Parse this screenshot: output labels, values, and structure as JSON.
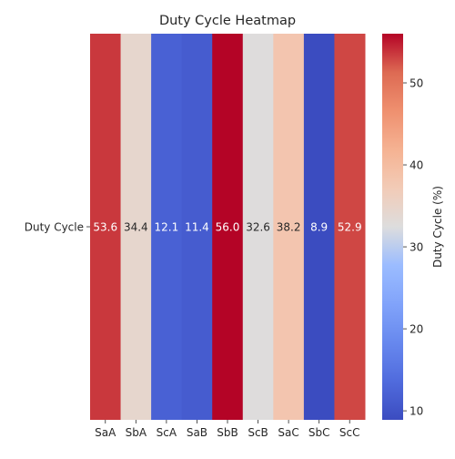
{
  "chart_data": {
    "type": "heatmap",
    "title": "Duty Cycle Heatmap",
    "row_labels": [
      "Duty Cycle"
    ],
    "categories": [
      "SaA",
      "SbA",
      "ScA",
      "SaB",
      "SbB",
      "ScB",
      "SaC",
      "SbC",
      "ScC"
    ],
    "values": [
      [
        53.6,
        34.4,
        12.1,
        11.4,
        56.0,
        32.6,
        38.2,
        8.9,
        52.9
      ]
    ],
    "value_labels": [
      "53.6",
      "34.4",
      "12.1",
      "11.4",
      "56.0",
      "32.6",
      "38.2",
      "8.9",
      "52.9"
    ],
    "colormap": "coolwarm",
    "vmin": 8.9,
    "vmax": 56.0,
    "colorbar": {
      "label": "Duty Cycle (%)",
      "ticks": [
        10,
        20,
        30,
        40,
        50
      ],
      "tick_labels": [
        "10",
        "20",
        "30",
        "40",
        "50"
      ],
      "placement": "right"
    },
    "annotation_colors": {
      "on_light": "#262626",
      "on_dark": "#ffffff"
    }
  }
}
